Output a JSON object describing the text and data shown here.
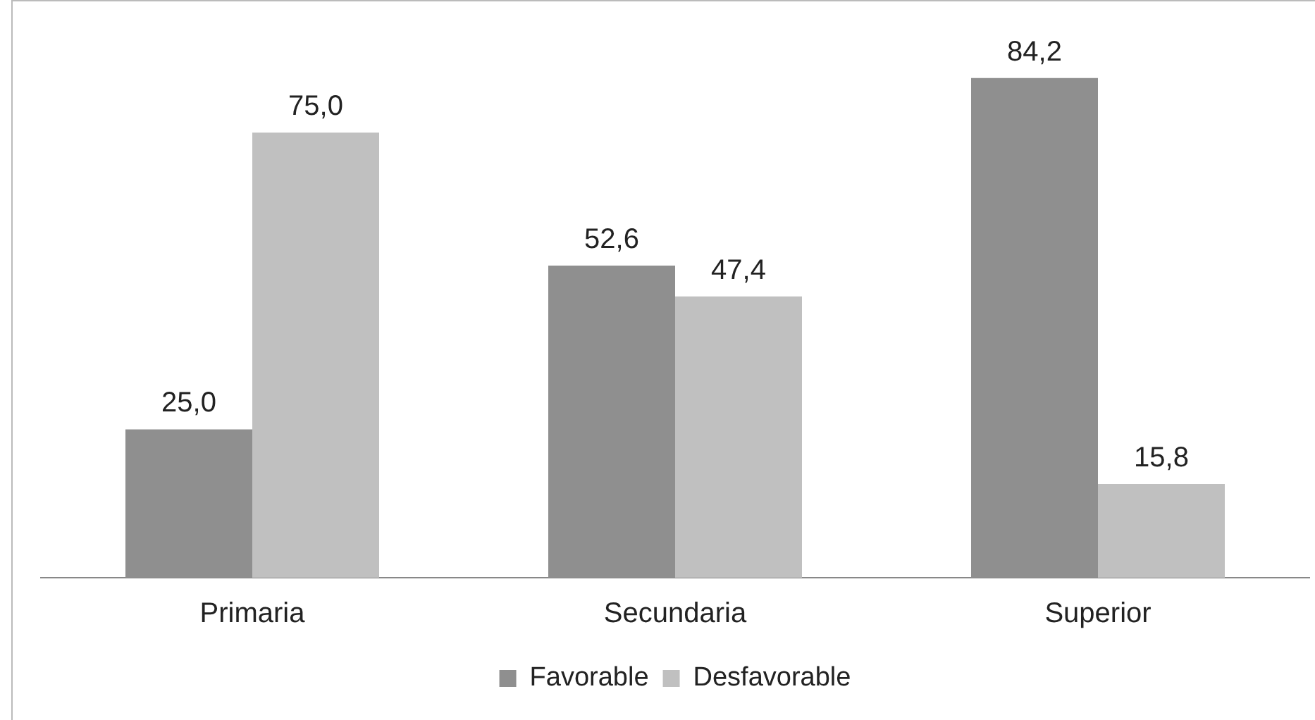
{
  "chart_data": {
    "type": "bar",
    "categories": [
      "Primaria",
      "Secundaria",
      "Superior"
    ],
    "series": [
      {
        "name": "Favorable",
        "color": "#8f8f8f",
        "values": [
          25.0,
          52.6,
          84.2
        ],
        "value_labels": [
          "25,0",
          "52,6",
          "84,2"
        ]
      },
      {
        "name": "Desfavorable",
        "color": "#c0c0c0",
        "values": [
          75.0,
          47.4,
          15.8
        ],
        "value_labels": [
          "75,0",
          "47,4",
          "15,8"
        ]
      }
    ],
    "legend": "bottom",
    "tick_labels": "x"
  }
}
